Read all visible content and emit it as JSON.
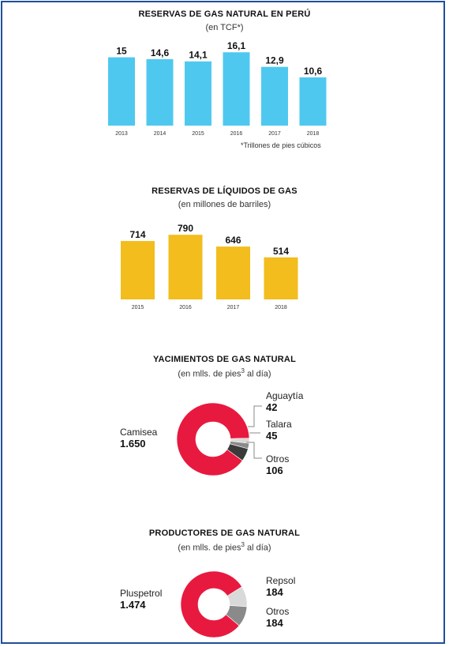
{
  "colors": {
    "frame": "#1f4f9c",
    "blue_bar": "#4fc8f0",
    "yellow_bar": "#f2bd1d",
    "red": "#e8193f",
    "gray_light": "#d9d9d9",
    "gray_mid": "#8a8a8a",
    "gray_dark": "#3a3a3a"
  },
  "chart_data": [
    {
      "type": "bar",
      "title": "RESERVAS DE GAS NATURAL EN PERÚ",
      "subtitle": "(en TCF*)",
      "note": "*Trillones de pies cúbicos",
      "categories": [
        "2013",
        "2014",
        "2015",
        "2016",
        "2017",
        "2018"
      ],
      "values": [
        15,
        14.6,
        14.1,
        16.1,
        12.9,
        10.6
      ],
      "value_labels": [
        "15",
        "14,6",
        "14,1",
        "16,1",
        "12,9",
        "10,6"
      ],
      "ylim": [
        0,
        17
      ],
      "grid": false
    },
    {
      "type": "bar",
      "title": "RESERVAS DE LÍQUIDOS DE GAS",
      "subtitle": "(en millones de barriles)",
      "categories": [
        "2015",
        "2016",
        "2017",
        "2018"
      ],
      "values": [
        714,
        790,
        646,
        514
      ],
      "value_labels": [
        "714",
        "790",
        "646",
        "514"
      ],
      "ylim": [
        0,
        850
      ],
      "grid": false
    },
    {
      "type": "pie",
      "title": "YACIMIENTOS DE GAS NATURAL",
      "subtitle_pre": "(en mlls. de pies",
      "subtitle_sup": "3",
      "subtitle_post": " al día)",
      "slices": [
        {
          "name": "Camisea",
          "value": 1650,
          "value_label": "1.650"
        },
        {
          "name": "Aguaytía",
          "value": 42,
          "value_label": "42"
        },
        {
          "name": "Talara",
          "value": 45,
          "value_label": "45"
        },
        {
          "name": "Otros",
          "value": 106,
          "value_label": "106"
        }
      ]
    },
    {
      "type": "pie",
      "title": "PRODUCTORES DE GAS NATURAL",
      "subtitle_pre": "(en mlls. de pies",
      "subtitle_sup": "3",
      "subtitle_post": " al día)",
      "slices": [
        {
          "name": "Pluspetrol",
          "value": 1474,
          "value_label": "1.474"
        },
        {
          "name": "Repsol",
          "value": 184,
          "value_label": "184"
        },
        {
          "name": "Otros",
          "value": 184,
          "value_label": "184"
        }
      ]
    }
  ]
}
